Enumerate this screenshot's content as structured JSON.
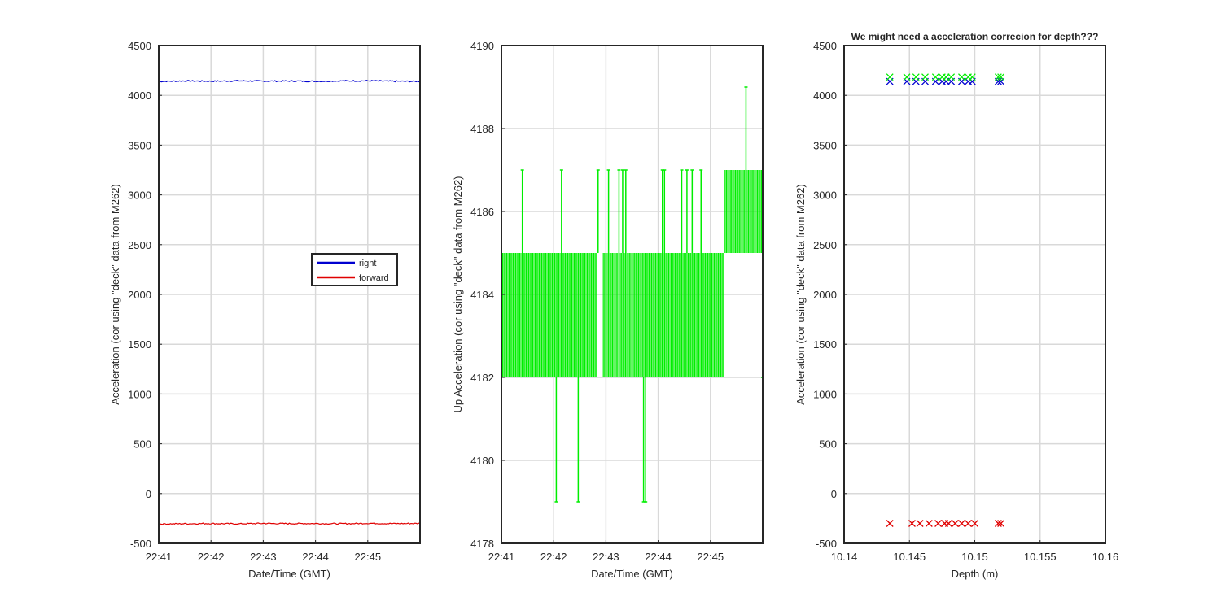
{
  "figure": {
    "colors": {
      "right": "#0000d0",
      "forward": "#e00000",
      "up": "#00ee00",
      "grid": "#d9d9d9",
      "axis": "#262626"
    }
  },
  "chart_data": [
    {
      "type": "line",
      "title": "",
      "xlabel": "Date/Time (GMT)",
      "ylabel": "Acceleration (cor using \"deck\" data from M262)",
      "x_tick_labels": [
        "22:41",
        "22:42",
        "22:43",
        "22:44",
        "22:45"
      ],
      "x_ticks_min": [
        0,
        1,
        2,
        3,
        4
      ],
      "xlim_min": [
        0,
        5
      ],
      "ylim": [
        -500,
        4500
      ],
      "y_ticks": [
        -500,
        0,
        500,
        1000,
        1500,
        2000,
        2500,
        3000,
        3500,
        4000,
        4500
      ],
      "grid": true,
      "legend": {
        "position": "middle-right",
        "entries": [
          "right",
          "forward"
        ]
      },
      "series": [
        {
          "name": "right",
          "color": "#0000d0",
          "x_min": [
            0,
            0.5,
            1,
            1.5,
            2,
            2.5,
            3,
            3.5,
            4,
            4.5,
            5
          ],
          "values": [
            4140,
            4145,
            4142,
            4146,
            4143,
            4144,
            4141,
            4145,
            4146,
            4142,
            4140
          ]
        },
        {
          "name": "forward",
          "color": "#e00000",
          "x_min": [
            0,
            0.5,
            1,
            1.5,
            2,
            2.5,
            3,
            3.5,
            4,
            4.5,
            5
          ],
          "values": [
            -305,
            -303,
            -301,
            -304,
            -300,
            -302,
            -301,
            -303,
            -299,
            -302,
            -300
          ]
        }
      ]
    },
    {
      "type": "line",
      "title": "",
      "xlabel": "Date/Time (GMT)",
      "ylabel": "Up Acceleration (cor using \"deck\" data from M262)",
      "x_tick_labels": [
        "22:41",
        "22:42",
        "22:43",
        "22:44",
        "22:45"
      ],
      "x_ticks_min": [
        0,
        1,
        2,
        3,
        4
      ],
      "xlim_min": [
        0,
        5
      ],
      "ylim": [
        4178,
        4190
      ],
      "y_ticks": [
        4178,
        4180,
        4182,
        4184,
        4186,
        4188,
        4190
      ],
      "grid": true,
      "series": [
        {
          "name": "up",
          "color": "#00ee00",
          "band_segments": [
            {
              "x0": 0.0,
              "x1": 1.82,
              "low": 4182,
              "high": 4185
            },
            {
              "x0": 1.95,
              "x1": 4.25,
              "low": 4182,
              "high": 4185
            },
            {
              "x0": 4.28,
              "x1": 5.0,
              "low": 4185,
              "high": 4187
            }
          ],
          "spikes": [
            {
              "x": 0.4,
              "from": 4185,
              "to": 4187
            },
            {
              "x": 1.05,
              "from": 4182,
              "to": 4179
            },
            {
              "x": 1.15,
              "from": 4185,
              "to": 4187
            },
            {
              "x": 1.47,
              "from": 4182,
              "to": 4179
            },
            {
              "x": 1.85,
              "from": 4185,
              "to": 4187
            },
            {
              "x": 2.05,
              "from": 4185,
              "to": 4187
            },
            {
              "x": 2.25,
              "from": 4185,
              "to": 4187
            },
            {
              "x": 2.32,
              "from": 4185,
              "to": 4187
            },
            {
              "x": 2.38,
              "from": 4185,
              "to": 4187
            },
            {
              "x": 2.72,
              "from": 4182,
              "to": 4179
            },
            {
              "x": 2.76,
              "from": 4182,
              "to": 4179
            },
            {
              "x": 3.08,
              "from": 4185,
              "to": 4187
            },
            {
              "x": 3.12,
              "from": 4185,
              "to": 4187
            },
            {
              "x": 3.45,
              "from": 4185,
              "to": 4187
            },
            {
              "x": 3.55,
              "from": 4185,
              "to": 4187
            },
            {
              "x": 3.65,
              "from": 4185,
              "to": 4187
            },
            {
              "x": 3.82,
              "from": 4185,
              "to": 4187
            },
            {
              "x": 4.68,
              "from": 4187,
              "to": 4189
            },
            {
              "x": 5.0,
              "from": 4185,
              "to": 4182
            }
          ]
        }
      ]
    },
    {
      "type": "scatter",
      "title": "We might need a acceleration correcion for depth???",
      "xlabel": "Depth (m)",
      "ylabel": "Acceleration (cor using \"deck\" data from M262)",
      "xlim": [
        10.14,
        10.16
      ],
      "x_ticks": [
        10.14,
        10.145,
        10.15,
        10.155,
        10.16
      ],
      "x_tick_labels": [
        "10.14",
        "10.145",
        "10.15",
        "10.155",
        "10.16"
      ],
      "ylim": [
        -500,
        4500
      ],
      "y_ticks": [
        -500,
        0,
        500,
        1000,
        1500,
        2000,
        2500,
        3000,
        3500,
        4000,
        4500
      ],
      "grid": true,
      "series": [
        {
          "name": "right",
          "color": "#0000d0",
          "x": [
            10.1435,
            10.1448,
            10.1455,
            10.1462,
            10.147,
            10.1475,
            10.1478,
            10.1482,
            10.149,
            10.1495,
            10.1498,
            10.1518,
            10.152
          ],
          "values": [
            4140,
            4140,
            4140,
            4140,
            4140,
            4140,
            4140,
            4140,
            4140,
            4140,
            4140,
            4140,
            4140
          ]
        },
        {
          "name": "up",
          "color": "#00ee00",
          "x": [
            10.1435,
            10.1448,
            10.1455,
            10.1462,
            10.147,
            10.1475,
            10.1478,
            10.1482,
            10.149,
            10.1495,
            10.1498,
            10.1518,
            10.152
          ],
          "values": [
            4184,
            4184,
            4184,
            4184,
            4184,
            4184,
            4184,
            4184,
            4184,
            4184,
            4184,
            4184,
            4184
          ]
        },
        {
          "name": "forward",
          "color": "#e00000",
          "x": [
            10.1435,
            10.1452,
            10.1458,
            10.1465,
            10.1472,
            10.1477,
            10.148,
            10.1485,
            10.149,
            10.1495,
            10.15,
            10.1518,
            10.152
          ],
          "values": [
            -300,
            -300,
            -300,
            -300,
            -300,
            -300,
            -300,
            -300,
            -300,
            -300,
            -300,
            -300,
            -300
          ]
        }
      ]
    }
  ]
}
